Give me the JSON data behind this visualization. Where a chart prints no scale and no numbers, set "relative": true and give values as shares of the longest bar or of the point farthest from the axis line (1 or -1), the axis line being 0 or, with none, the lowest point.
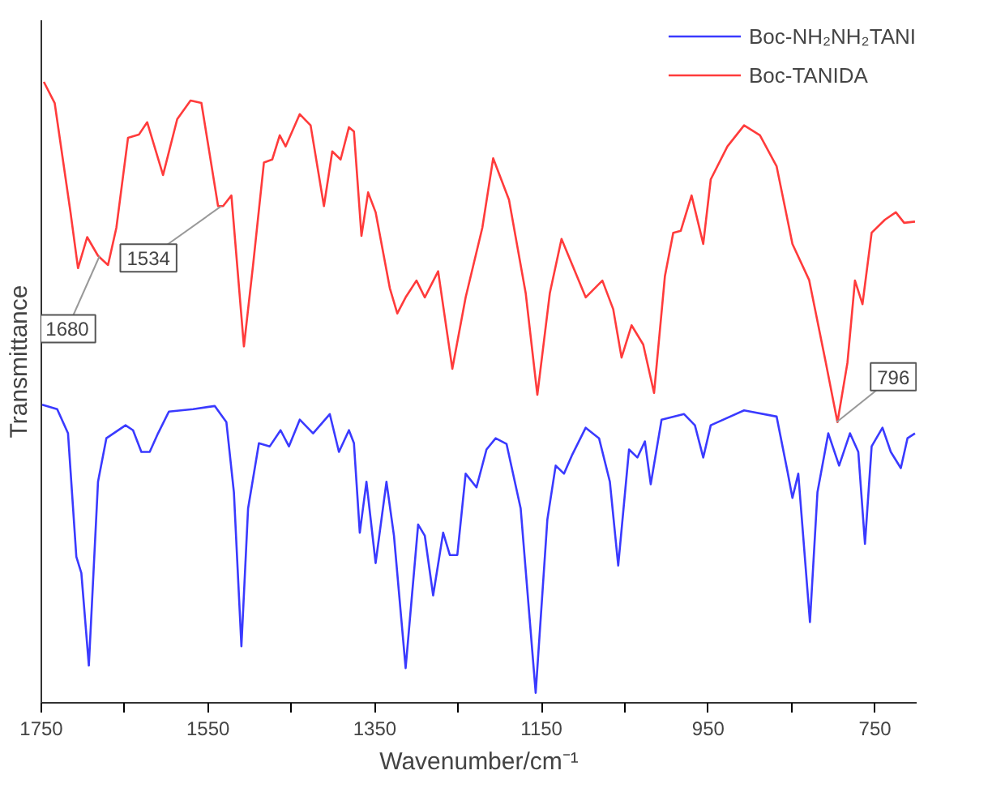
{
  "chart_data": {
    "type": "line",
    "relative": true,
    "xlabel": "Wavenumber/cm⁻¹",
    "ylabel": "Transmittance",
    "xlim": [
      1750,
      700
    ],
    "xticks": [
      1750,
      {
        "value": 1650,
        "label": null
      },
      1550,
      {
        "value": 1450,
        "label": null
      },
      1350,
      {
        "value": 1250,
        "label": null
      },
      1150,
      {
        "value": 1050,
        "label": null
      },
      950,
      {
        "value": 850,
        "label": null
      },
      750
    ],
    "grid": false,
    "legend": "top right",
    "marker": "none",
    "line_style": "solid",
    "annotations": [
      {
        "text": "1680",
        "x": 1680,
        "y": 0.72
      },
      {
        "text": "1534",
        "x": 1534,
        "y": 0.8
      },
      {
        "text": "796",
        "x": 796,
        "y": 0.452
      }
    ],
    "series": [
      {
        "name": "Boc-NH₂NH₂TANI",
        "color": "#3a3aff",
        "x": [
          1749,
          1731,
          1718,
          1708,
          1702,
          1693,
          1682,
          1672,
          1649,
          1640,
          1630,
          1620,
          1610,
          1597,
          1568,
          1542,
          1528,
          1519,
          1510,
          1502,
          1489,
          1476,
          1463,
          1453,
          1440,
          1424,
          1404,
          1393,
          1381,
          1375,
          1368,
          1360,
          1349,
          1336,
          1327,
          1313,
          1298,
          1290,
          1280,
          1268,
          1260,
          1251,
          1241,
          1228,
          1216,
          1205,
          1192,
          1175,
          1157,
          1143,
          1133,
          1123,
          1113,
          1097,
          1081,
          1068,
          1058,
          1045,
          1035,
          1026,
          1019,
          1006,
          979,
          966,
          956,
          947,
          907,
          868,
          855,
          849,
          842,
          828,
          819,
          806,
          793,
          780,
          770,
          762,
          754,
          741,
          731,
          719,
          711,
          702
        ],
        "values": [
          0.48,
          0.473,
          0.434,
          0.235,
          0.209,
          0.06,
          0.356,
          0.426,
          0.447,
          0.439,
          0.404,
          0.404,
          0.434,
          0.469,
          0.473,
          0.478,
          0.452,
          0.339,
          0.091,
          0.313,
          0.418,
          0.413,
          0.439,
          0.413,
          0.456,
          0.434,
          0.465,
          0.404,
          0.439,
          0.418,
          0.274,
          0.356,
          0.225,
          0.356,
          0.269,
          0.056,
          0.287,
          0.269,
          0.173,
          0.274,
          0.238,
          0.238,
          0.369,
          0.347,
          0.408,
          0.426,
          0.417,
          0.313,
          0.016,
          0.295,
          0.382,
          0.369,
          0.4,
          0.443,
          0.426,
          0.356,
          0.221,
          0.408,
          0.395,
          0.421,
          0.352,
          0.456,
          0.465,
          0.447,
          0.395,
          0.447,
          0.471,
          0.461,
          0.373,
          0.33,
          0.369,
          0.13,
          0.339,
          0.434,
          0.382,
          0.434,
          0.404,
          0.256,
          0.413,
          0.443,
          0.404,
          0.378,
          0.426,
          0.434
        ]
      },
      {
        "name": "Boc-TANIDA",
        "color": "#ff3b3b",
        "x": [
          1747,
          1734,
          1715,
          1706,
          1695,
          1682,
          1670,
          1660,
          1646,
          1633,
          1623,
          1604,
          1587,
          1571,
          1558,
          1538,
          1532,
          1522,
          1507,
          1496,
          1483,
          1473,
          1464,
          1457,
          1440,
          1427,
          1411,
          1401,
          1391,
          1381,
          1375,
          1366,
          1358,
          1349,
          1332,
          1323,
          1313,
          1300,
          1290,
          1274,
          1257,
          1241,
          1221,
          1208,
          1189,
          1169,
          1155,
          1140,
          1126,
          1113,
          1097,
          1077,
          1064,
          1054,
          1042,
          1028,
          1015,
          1002,
          992,
          983,
          970,
          956,
          947,
          927,
          907,
          888,
          868,
          849,
          829,
          809,
          795,
          783,
          774,
          765,
          754,
          738,
          725,
          715,
          702
        ],
        "values": [
          1,
          0.966,
          0.79,
          0.7,
          0.75,
          0.72,
          0.705,
          0.765,
          0.91,
          0.915,
          0.935,
          0.85,
          0.94,
          0.97,
          0.966,
          0.8,
          0.8,
          0.817,
          0.574,
          0.705,
          0.87,
          0.875,
          0.914,
          0.896,
          0.948,
          0.93,
          0.8,
          0.888,
          0.875,
          0.927,
          0.92,
          0.752,
          0.822,
          0.79,
          0.668,
          0.627,
          0.653,
          0.68,
          0.653,
          0.695,
          0.538,
          0.653,
          0.765,
          0.877,
          0.81,
          0.66,
          0.496,
          0.66,
          0.747,
          0.705,
          0.653,
          0.68,
          0.634,
          0.556,
          0.608,
          0.577,
          0.499,
          0.687,
          0.757,
          0.76,
          0.817,
          0.739,
          0.843,
          0.896,
          0.93,
          0.914,
          0.864,
          0.739,
          0.681,
          0.548,
          0.452,
          0.548,
          0.68,
          0.642,
          0.757,
          0.778,
          0.79,
          0.773,
          0.775
        ]
      }
    ]
  }
}
